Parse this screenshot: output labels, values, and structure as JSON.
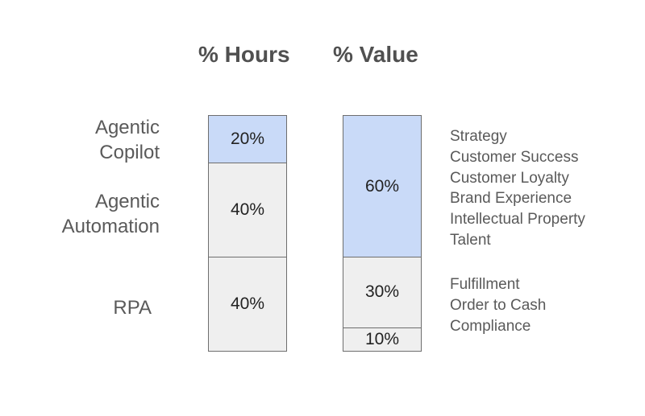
{
  "headings": {
    "hours": "% Hours",
    "value": "% Value"
  },
  "row_labels": [
    {
      "lines": [
        "Agentic",
        "Copilot"
      ]
    },
    {
      "lines": [
        "Agentic",
        "Automation"
      ]
    },
    {
      "lines": [
        "RPA"
      ]
    }
  ],
  "hours_bar": {
    "segments": [
      {
        "label": "20%",
        "value": 20,
        "color": "#c9daf8"
      },
      {
        "label": "40%",
        "value": 40,
        "color": "#efefef"
      },
      {
        "label": "40%",
        "value": 40,
        "color": "#efefef"
      }
    ]
  },
  "value_bar": {
    "segments": [
      {
        "label": "60%",
        "value": 60,
        "color": "#c9daf8"
      },
      {
        "label": "30%",
        "value": 30,
        "color": "#efefef"
      },
      {
        "label": "10%",
        "value": 10,
        "color": "#efefef"
      }
    ]
  },
  "value_descriptions": {
    "high_value": [
      "Strategy",
      "Customer Success",
      "Customer Loyalty",
      "Brand Experience",
      "Intellectual Property",
      "Talent"
    ],
    "low_value": [
      "Fulfillment",
      "Order to Cash",
      "Compliance"
    ]
  },
  "colors": {
    "highlight": "#c9daf8",
    "neutral": "#efefef",
    "border": "#6e6e6e"
  }
}
